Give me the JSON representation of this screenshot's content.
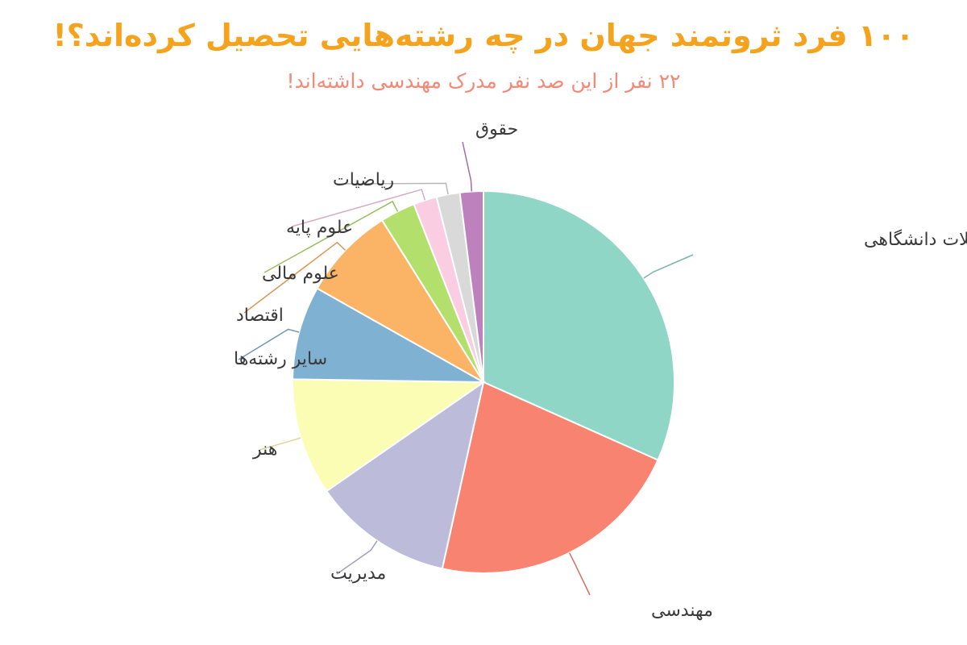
{
  "chart_data": {
    "type": "pie",
    "title": "۱۰۰ فرد ثروتمند جهان در چه رشته‌هایی تحصیل کرده‌اند؟!",
    "subtitle": "۲۲ نفر از این صد نفر مدرک مهندسی داشته‌اند!",
    "slices": [
      {
        "label": "بدون تحصیلات دانشگاهی",
        "value": 32,
        "color": "#8fd6c6"
      },
      {
        "label": "مهندسی",
        "value": 22,
        "color": "#f78370"
      },
      {
        "label": "مدیریت",
        "value": 12,
        "color": "#bcbbd9"
      },
      {
        "label": "هنر",
        "value": 10,
        "color": "#fcfdb5"
      },
      {
        "label": "سایر رشته‌ها",
        "value": 8,
        "color": "#7fb1d3"
      },
      {
        "label": "اقتصاد",
        "value": 8,
        "color": "#fbb466"
      },
      {
        "label": "علوم مالی",
        "value": 3,
        "color": "#b3df6c"
      },
      {
        "label": "علوم پایه",
        "value": 2,
        "color": "#fbcde3"
      },
      {
        "label": "ریاضیات",
        "value": 2,
        "color": "#d9d9d9"
      },
      {
        "label": "حقوق",
        "value": 2,
        "color": "#bd81be"
      }
    ]
  }
}
